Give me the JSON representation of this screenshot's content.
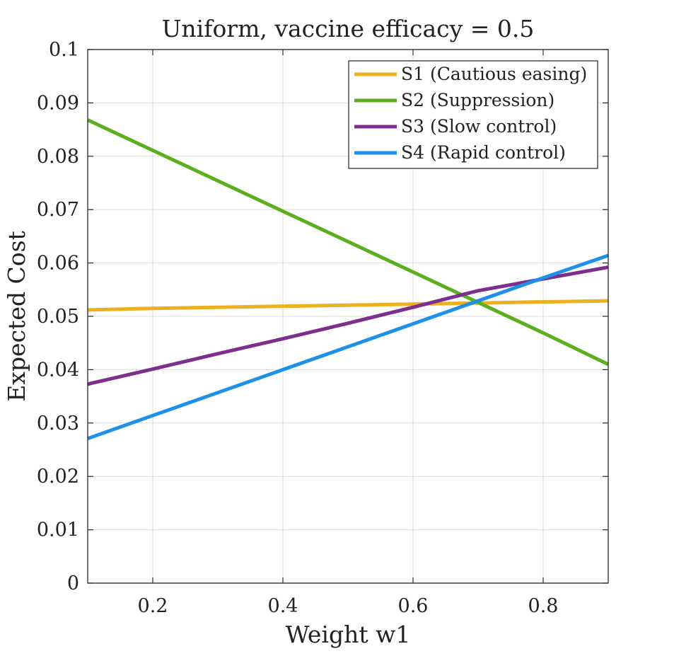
{
  "chart_data": {
    "type": "line",
    "title": "Uniform, vaccine efficacy = 0.5",
    "xlabel": "Weight w1",
    "ylabel": "Expected Cost",
    "xlim": [
      0.1,
      0.9
    ],
    "ylim": [
      0,
      0.1
    ],
    "grid": true,
    "legend_position": "top-right",
    "x_ticks": [
      0.2,
      0.4,
      0.6,
      0.8
    ],
    "x_tick_labels": [
      "0.2",
      "0.4",
      "0.6",
      "0.8"
    ],
    "y_ticks": [
      0,
      0.01,
      0.02,
      0.03,
      0.04,
      0.05,
      0.06,
      0.07,
      0.08,
      0.09,
      0.1
    ],
    "y_tick_labels": [
      "0",
      "0.01",
      "0.02",
      "0.03",
      "0.04",
      "0.05",
      "0.06",
      "0.07",
      "0.08",
      "0.09",
      "0.1"
    ],
    "x": [
      0.1,
      0.2,
      0.3,
      0.4,
      0.5,
      0.6,
      0.7,
      0.8,
      0.9
    ],
    "series": [
      {
        "name": "S1 (Cautious easing)",
        "color": "#EDB120",
        "values": [
          0.0512,
          0.0515,
          0.0517,
          0.0519,
          0.0521,
          0.0523,
          0.0525,
          0.0527,
          0.0529
        ]
      },
      {
        "name": "S2 (Suppression)",
        "color": "#5DAE1F",
        "values": [
          0.0868,
          0.0811,
          0.0754,
          0.0697,
          0.064,
          0.0583,
          0.0526,
          0.0469,
          0.041
        ]
      },
      {
        "name": "S3 (Slow control)",
        "color": "#7E2F8E",
        "values": [
          0.0373,
          0.0401,
          0.043,
          0.0458,
          0.0487,
          0.0517,
          0.0548,
          0.057,
          0.0592
        ]
      },
      {
        "name": "S4 (Rapid control)",
        "color": "#1E90E8",
        "values": [
          0.0271,
          0.0314,
          0.0357,
          0.04,
          0.0443,
          0.0486,
          0.0529,
          0.0572,
          0.0614
        ]
      }
    ]
  }
}
